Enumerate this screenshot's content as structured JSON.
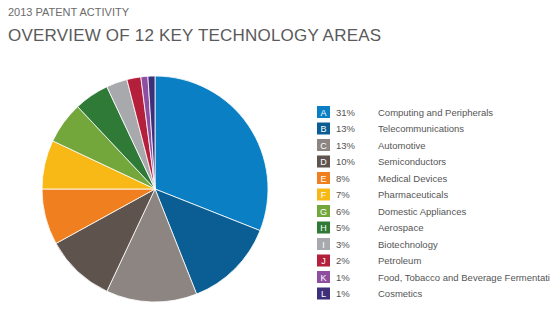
{
  "chart_data": {
    "type": "pie",
    "subtitle": "2013 PATENT ACTIVITY",
    "title": "OVERVIEW OF 12 KEY TECHNOLOGY AREAS",
    "categories": [
      "Computing and Peripherals",
      "Telecommunications",
      "Automotive",
      "Semiconductors",
      "Medical Devices",
      "Pharmaceuticals",
      "Domestic Appliances",
      "Aerospace",
      "Biotechnology",
      "Petroleum",
      "Food, Tobacco and Beverage Fermentation",
      "Cosmetics"
    ],
    "legend_keys": [
      "A",
      "B",
      "C",
      "D",
      "E",
      "F",
      "G",
      "H",
      "I",
      "J",
      "K",
      "L"
    ],
    "values": [
      31,
      13,
      13,
      10,
      8,
      7,
      6,
      5,
      3,
      2,
      1,
      1
    ],
    "value_labels": [
      "31%",
      "13%",
      "13%",
      "10%",
      "8%",
      "7%",
      "6%",
      "5%",
      "3%",
      "2%",
      "1%",
      "1%"
    ],
    "colors": [
      "#0b7fc4",
      "#0a5e93",
      "#8d8581",
      "#5f534d",
      "#f0801f",
      "#f8b916",
      "#73a63b",
      "#2f7a37",
      "#a8a9ac",
      "#b41f3b",
      "#8e4fa0",
      "#3e2f7b"
    ],
    "legend": "right"
  }
}
